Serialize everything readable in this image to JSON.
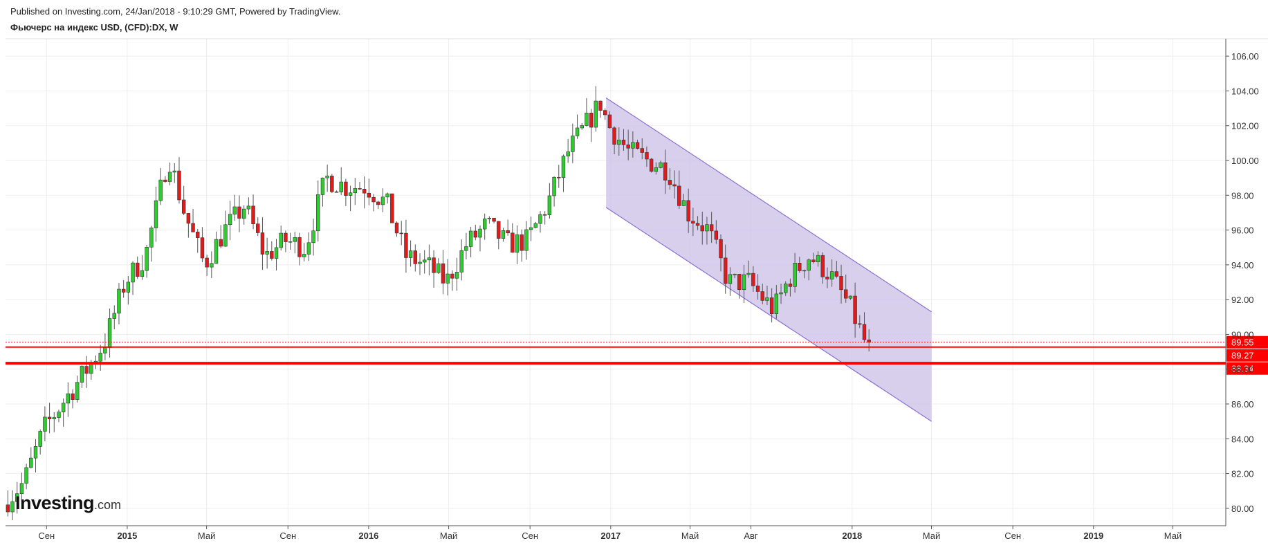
{
  "header": {
    "published": "Published on Investing.com, 24/Jan/2018 - 9:10:29 GMT, Powered by TradingView.",
    "symbol_title": "Фьючерс на индекс USD, (CFD):DX, W"
  },
  "logo": {
    "main": "Investing",
    "suffix": ".com"
  },
  "colors": {
    "up": "#2ecc2e",
    "down": "#e01b1b",
    "channel_fill": "#c9bfe6",
    "channel_line": "#8a6fcf",
    "level_line": "#ff0000",
    "grid": "#eeeeee"
  },
  "chart_data": {
    "type": "candlestick",
    "period": "W",
    "ylim": [
      79.0,
      107.0
    ],
    "y_ticks": [
      "106.00",
      "104.00",
      "102.00",
      "100.00",
      "98.00",
      "96.00",
      "94.00",
      "92.00",
      "90.00",
      "88.00",
      "86.00",
      "84.00",
      "82.00",
      "80.00"
    ],
    "x_ticks": [
      {
        "label": "Сен",
        "bold": false
      },
      {
        "label": "2015",
        "bold": true
      },
      {
        "label": "Май",
        "bold": false
      },
      {
        "label": "Сен",
        "bold": false
      },
      {
        "label": "2016",
        "bold": true
      },
      {
        "label": "Май",
        "bold": false
      },
      {
        "label": "Сен",
        "bold": false
      },
      {
        "label": "2017",
        "bold": true
      },
      {
        "label": "Май",
        "bold": false
      },
      {
        "label": "Авг",
        "bold": false
      },
      {
        "label": "2018",
        "bold": true
      },
      {
        "label": "Май",
        "bold": false
      },
      {
        "label": "Сен",
        "bold": false
      },
      {
        "label": "2019",
        "bold": true
      },
      {
        "label": "Май",
        "bold": false
      }
    ],
    "price_anchors": [
      [
        "2014-07-01",
        80.2
      ],
      [
        "2014-08-01",
        81.5
      ],
      [
        "2014-09-01",
        84.6
      ],
      [
        "2014-10-01",
        86.2
      ],
      [
        "2014-11-01",
        87.8
      ],
      [
        "2014-12-01",
        89.5
      ],
      [
        "2015-01-01",
        93.0
      ],
      [
        "2015-02-01",
        94.5
      ],
      [
        "2015-03-08",
        100.3
      ],
      [
        "2015-04-01",
        97.0
      ],
      [
        "2015-05-01",
        94.0
      ],
      [
        "2015-06-01",
        96.0
      ],
      [
        "2015-07-01",
        97.4
      ],
      [
        "2015-08-01",
        94.5
      ],
      [
        "2015-09-01",
        95.4
      ],
      [
        "2015-10-01",
        95.0
      ],
      [
        "2015-11-01",
        99.0
      ],
      [
        "2015-12-01",
        98.5
      ],
      [
        "2016-01-01",
        98.5
      ],
      [
        "2016-02-01",
        97.5
      ],
      [
        "2016-03-01",
        94.5
      ],
      [
        "2016-04-01",
        94.0
      ],
      [
        "2016-05-01",
        93.0
      ],
      [
        "2016-06-01",
        95.2
      ],
      [
        "2016-07-01",
        96.3
      ],
      [
        "2016-08-01",
        95.2
      ],
      [
        "2016-09-01",
        95.4
      ],
      [
        "2016-10-01",
        97.5
      ],
      [
        "2016-11-01",
        100.5
      ],
      [
        "2016-12-20",
        103.3
      ],
      [
        "2017-01-01",
        102.0
      ],
      [
        "2017-02-01",
        100.5
      ],
      [
        "2017-03-01",
        100.0
      ],
      [
        "2017-04-01",
        99.5
      ],
      [
        "2017-05-01",
        97.0
      ],
      [
        "2017-06-01",
        96.0
      ],
      [
        "2017-07-01",
        93.0
      ],
      [
        "2017-08-01",
        93.0
      ],
      [
        "2017-09-08",
        91.4
      ],
      [
        "2017-10-01",
        93.2
      ],
      [
        "2017-11-01",
        94.5
      ],
      [
        "2017-12-01",
        93.5
      ],
      [
        "2018-01-01",
        91.6
      ],
      [
        "2018-01-24",
        89.55
      ]
    ],
    "channel": {
      "upper": [
        [
          "2016-12-25",
          103.6
        ],
        [
          "2018-05-01",
          91.3
        ]
      ],
      "lower": [
        [
          "2016-12-25",
          97.3
        ],
        [
          "2018-05-01",
          85.0
        ]
      ]
    },
    "levels": [
      {
        "value": 89.55,
        "label": "89.55",
        "style": "dotted"
      },
      {
        "value": 89.27,
        "label": "89.27",
        "style": "solid"
      },
      {
        "value": 88.34,
        "label": "88.34",
        "style": "thick"
      }
    ]
  }
}
